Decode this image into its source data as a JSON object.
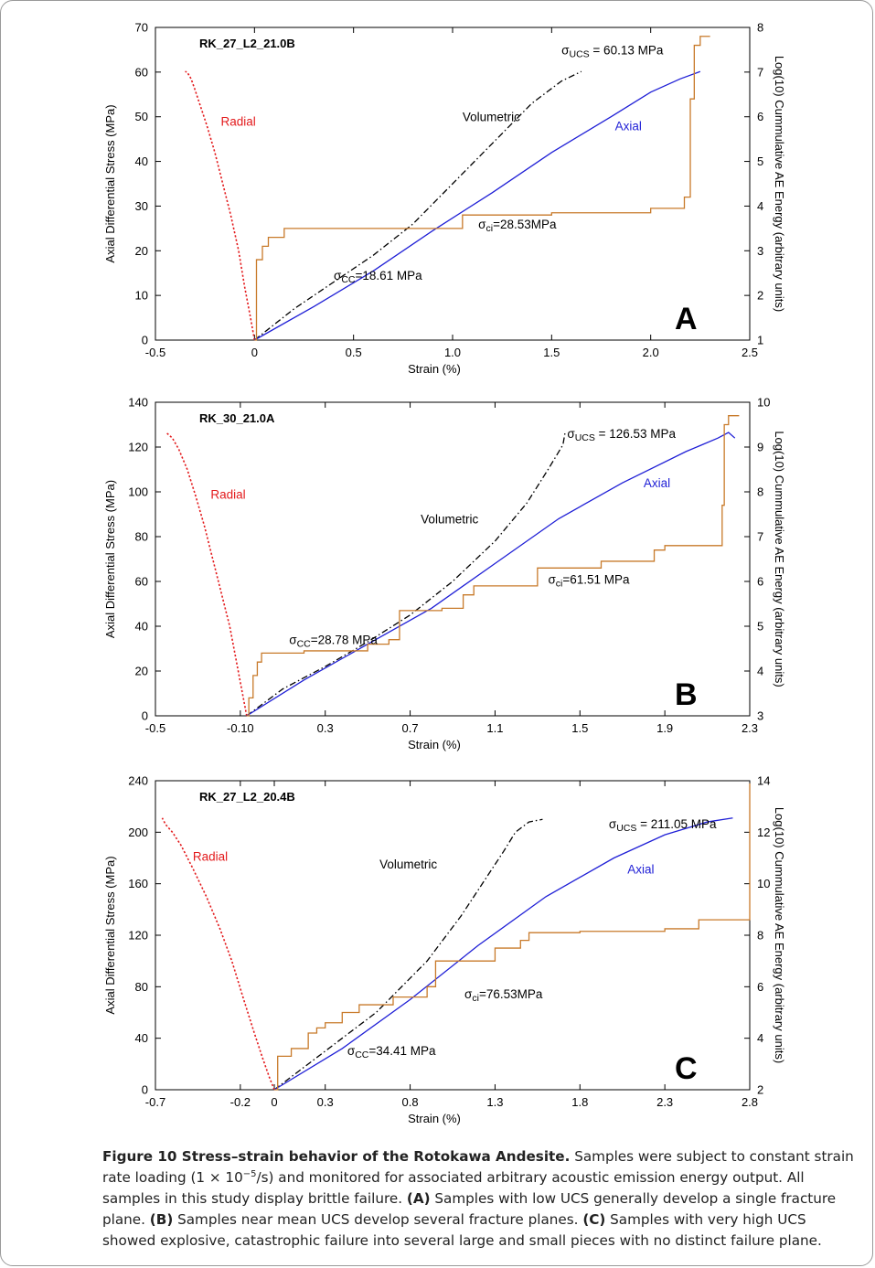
{
  "caption": {
    "title": "Figure 10 Stress–strain behavior of the Rotokawa Andesite.",
    "pre": " Samples were subject to constant strain rate loading (1 × 10",
    "exp": "−5",
    "post": "/s) and monitored for associated arbitrary acoustic emission energy output. All samples in this study display brittle failure. ",
    "a_label": "(A)",
    "a_text": " Samples with low UCS generally develop a single fracture plane. ",
    "b_label": "(B)",
    "b_text": " Samples near mean UCS develop several fracture planes. ",
    "c_label": "(C)",
    "c_text": " Samples with very high UCS showed explosive, catastrophic failure into several large and small pieces with no distinct failure plane."
  },
  "colors": {
    "radial": "#e31a1c",
    "volumetric": "#000000",
    "axial": "#1f1fd6",
    "ae": "#c87a2a"
  },
  "chart_data": [
    {
      "type": "line",
      "panel_letter": "A",
      "sample": "RK_27_L2_21.0B",
      "xlabel": "Strain (%)",
      "ylabel": "Axial Differential Stress (MPa)",
      "y2label": "Log(10) Cummulative AE Energy (arbitrary units)",
      "xlim": [
        -0.5,
        2.5
      ],
      "ylim": [
        0,
        70
      ],
      "y2lim": [
        1,
        8
      ],
      "xticks": [
        -0.5,
        0,
        0.5,
        1.0,
        1.5,
        2.0,
        2.5
      ],
      "xtick_labels": [
        "-0.5",
        "0",
        "0.5",
        "1.0",
        "1.5",
        "2.0",
        "2.5"
      ],
      "yticks": [
        0,
        10,
        20,
        30,
        40,
        50,
        60,
        70
      ],
      "y2ticks": [
        1,
        2,
        3,
        4,
        5,
        6,
        7,
        8
      ],
      "series": [
        {
          "name": "Radial",
          "style": "dotted",
          "axis": "left",
          "x": [
            0,
            -0.02,
            -0.05,
            -0.08,
            -0.12,
            -0.16,
            -0.2,
            -0.24,
            -0.27,
            -0.3,
            -0.32,
            -0.34,
            -0.35
          ],
          "y": [
            0,
            5,
            12,
            20,
            28,
            35,
            42,
            48,
            52,
            56,
            58.5,
            60,
            60.13
          ]
        },
        {
          "name": "Volumetric",
          "style": "dashdot",
          "axis": "left",
          "x": [
            0,
            0.2,
            0.4,
            0.6,
            0.8,
            1.0,
            1.2,
            1.4,
            1.55,
            1.65
          ],
          "y": [
            0,
            7,
            13,
            19,
            26,
            35,
            44,
            53,
            58,
            60.13
          ]
        },
        {
          "name": "Axial",
          "style": "solid",
          "axis": "left",
          "x": [
            0,
            0.3,
            0.6,
            0.9,
            1.2,
            1.5,
            1.8,
            2.0,
            2.15,
            2.25
          ],
          "y": [
            0,
            7.5,
            15.5,
            24.5,
            33,
            42,
            50,
            55.5,
            58.5,
            60.13
          ]
        },
        {
          "name": "AE energy",
          "style": "steps",
          "axis": "right",
          "x": [
            0,
            0.01,
            0.04,
            0.07,
            0.15,
            0.35,
            0.5,
            0.75,
            1.0,
            1.05,
            1.5,
            2.0,
            2.17,
            2.2,
            2.22,
            2.25,
            2.3
          ],
          "y": [
            1,
            2.8,
            3.1,
            3.3,
            3.5,
            3.5,
            3.5,
            3.5,
            3.5,
            3.8,
            3.85,
            3.95,
            4.2,
            6.4,
            7.6,
            7.8,
            7.8
          ]
        }
      ],
      "annotations": [
        {
          "series": "Radial",
          "text": "Radial",
          "x": -0.17,
          "y": 48
        },
        {
          "series": "Volumetric",
          "text": "Volumetric",
          "x": 1.05,
          "y": 49
        },
        {
          "series": "Axial",
          "text": "Axial",
          "x": 1.82,
          "y": 47
        },
        {
          "text": "σ",
          "sub": "UCS",
          "rest": " = 60.13 MPa",
          "x": 1.55,
          "y": 64
        },
        {
          "text": "σ",
          "sub": "ci",
          "rest": "=28.53MPa",
          "x": 1.13,
          "y": 25
        },
        {
          "text": "σ",
          "sub": "CC",
          "rest": "=18.61 MPa",
          "x": 0.4,
          "y": 13.5
        }
      ]
    },
    {
      "type": "line",
      "panel_letter": "B",
      "sample": "RK_30_21.0A",
      "xlabel": "Strain (%)",
      "ylabel": "Axial Differential Stress (MPa)",
      "y2label": "Log(10) Cummulative AE Energy (arbitrary units)",
      "xlim": [
        -0.5,
        2.3
      ],
      "ylim": [
        0,
        140
      ],
      "y2lim": [
        3,
        10
      ],
      "xticks": [
        -0.5,
        -0.1,
        0.3,
        0.7,
        1.1,
        1.5,
        1.9,
        2.3
      ],
      "xtick_labels": [
        "-0.5",
        "-0.10",
        "0.3",
        "0.7",
        "1.1",
        "1.5",
        "1.9",
        "2.3"
      ],
      "yticks": [
        0,
        20,
        40,
        60,
        80,
        100,
        120,
        140
      ],
      "y2ticks": [
        3,
        4,
        5,
        6,
        7,
        8,
        9,
        10
      ],
      "series": [
        {
          "name": "Radial",
          "style": "dotted",
          "axis": "left",
          "x": [
            -0.07,
            -0.09,
            -0.12,
            -0.15,
            -0.19,
            -0.23,
            -0.27,
            -0.31,
            -0.35,
            -0.39,
            -0.42,
            -0.45
          ],
          "y": [
            0,
            10,
            25,
            40,
            55,
            70,
            85,
            98,
            110,
            119,
            124,
            126.53
          ]
        },
        {
          "name": "Volumetric",
          "style": "dashdot",
          "axis": "left",
          "x": [
            -0.07,
            0.1,
            0.3,
            0.5,
            0.7,
            0.9,
            1.1,
            1.25,
            1.35,
            1.42,
            1.43
          ],
          "y": [
            0,
            12,
            22,
            33,
            45,
            60,
            78,
            95,
            110,
            121,
            126.53
          ]
        },
        {
          "name": "Axial",
          "style": "solid",
          "axis": "left",
          "x": [
            -0.07,
            0.2,
            0.5,
            0.8,
            1.1,
            1.4,
            1.7,
            2.0,
            2.15,
            2.2,
            2.23
          ],
          "y": [
            0,
            16,
            32,
            48,
            68,
            88,
            104,
            118,
            124,
            126.53,
            124
          ]
        },
        {
          "name": "AE energy",
          "style": "steps",
          "axis": "right",
          "x": [
            -0.07,
            -0.06,
            -0.04,
            -0.02,
            0.0,
            0.2,
            0.5,
            0.6,
            0.65,
            0.85,
            0.95,
            1.0,
            1.3,
            1.6,
            1.85,
            1.9,
            2.17,
            2.18,
            2.2,
            2.25
          ],
          "y": [
            3,
            3.4,
            3.9,
            4.2,
            4.4,
            4.45,
            4.6,
            4.7,
            5.35,
            5.4,
            5.7,
            5.9,
            6.3,
            6.45,
            6.7,
            6.8,
            7.7,
            9.5,
            9.7,
            9.7
          ]
        }
      ],
      "annotations": [
        {
          "series": "Radial",
          "text": "Radial",
          "x": -0.24,
          "y": 97
        },
        {
          "series": "Volumetric",
          "text": "Volumetric",
          "x": 0.75,
          "y": 86
        },
        {
          "series": "Axial",
          "text": "Axial",
          "x": 1.8,
          "y": 102
        },
        {
          "text": "σ",
          "sub": "UCS",
          "rest": " = 126.53 MPa",
          "x": 1.44,
          "y": 124
        },
        {
          "text": "σ",
          "sub": "ci",
          "rest": "=61.51 MPa",
          "x": 1.35,
          "y": 59
        },
        {
          "text": "σ",
          "sub": "CC",
          "rest": "=28.78 MPa",
          "x": 0.13,
          "y": 32
        }
      ]
    },
    {
      "type": "line",
      "panel_letter": "C",
      "sample": "RK_27_L2_20.4B",
      "xlabel": "Strain (%)",
      "ylabel": "Axial Differential Stress (MPa)",
      "y2label": "Log(10) Cummulative AE Energy (arbitrary units)",
      "xlim": [
        -0.7,
        2.8
      ],
      "ylim": [
        0,
        240
      ],
      "y2lim": [
        2,
        14
      ],
      "xticks": [
        -0.7,
        -0.2,
        0,
        0.3,
        0.8,
        1.3,
        1.8,
        2.3,
        2.8
      ],
      "xtick_labels": [
        "-0.7",
        "-0.2",
        "0",
        "0.3",
        "0.8",
        "1.3",
        "1.8",
        "2.3",
        "2.8"
      ],
      "yticks": [
        0,
        40,
        80,
        120,
        160,
        200,
        240
      ],
      "y2ticks": [
        2,
        4,
        6,
        8,
        10,
        12,
        14
      ],
      "series": [
        {
          "name": "Radial",
          "style": "dotted",
          "axis": "left",
          "x": [
            0,
            -0.03,
            -0.07,
            -0.12,
            -0.18,
            -0.25,
            -0.32,
            -0.4,
            -0.48,
            -0.55,
            -0.6,
            -0.64,
            -0.66
          ],
          "y": [
            0,
            10,
            25,
            45,
            70,
            100,
            125,
            150,
            172,
            190,
            200,
            206,
            211.05
          ]
        },
        {
          "name": "Volumetric",
          "style": "dashdot",
          "axis": "left",
          "x": [
            0,
            0.3,
            0.6,
            0.9,
            1.1,
            1.25,
            1.35,
            1.42,
            1.5,
            1.58
          ],
          "y": [
            0,
            30,
            60,
            100,
            135,
            165,
            185,
            200,
            208,
            210
          ]
        },
        {
          "name": "Axial",
          "style": "solid",
          "axis": "left",
          "x": [
            0,
            0.4,
            0.8,
            1.2,
            1.6,
            2.0,
            2.3,
            2.55,
            2.7
          ],
          "y": [
            0,
            32,
            70,
            112,
            150,
            180,
            198,
            208,
            211.05
          ]
        },
        {
          "name": "AE energy",
          "style": "steps",
          "axis": "right",
          "x": [
            0,
            0.02,
            0.1,
            0.2,
            0.25,
            0.3,
            0.4,
            0.5,
            0.7,
            0.9,
            0.95,
            1.3,
            1.45,
            1.5,
            1.8,
            2.3,
            2.5,
            2.75,
            2.8
          ],
          "y": [
            2,
            3.3,
            3.6,
            4.2,
            4.4,
            4.6,
            5.0,
            5.3,
            5.6,
            6.0,
            7.0,
            7.5,
            7.8,
            8.1,
            8.15,
            8.25,
            8.6,
            8.6,
            13.9
          ]
        }
      ],
      "annotations": [
        {
          "series": "Radial",
          "text": "Radial",
          "x": -0.48,
          "y": 178
        },
        {
          "series": "Volumetric",
          "text": "Volumetric",
          "x": 0.62,
          "y": 172
        },
        {
          "series": "Axial",
          "text": "Axial",
          "x": 2.08,
          "y": 168
        },
        {
          "text": "σ",
          "sub": "UCS",
          "rest": " = 211.05 MPa",
          "x": 1.97,
          "y": 203
        },
        {
          "text": "σ",
          "sub": "ci",
          "rest": "=76.53MPa",
          "x": 1.12,
          "y": 71
        },
        {
          "text": "σ",
          "sub": "CC",
          "rest": "=34.41 MPa",
          "x": 0.43,
          "y": 27
        }
      ]
    }
  ]
}
